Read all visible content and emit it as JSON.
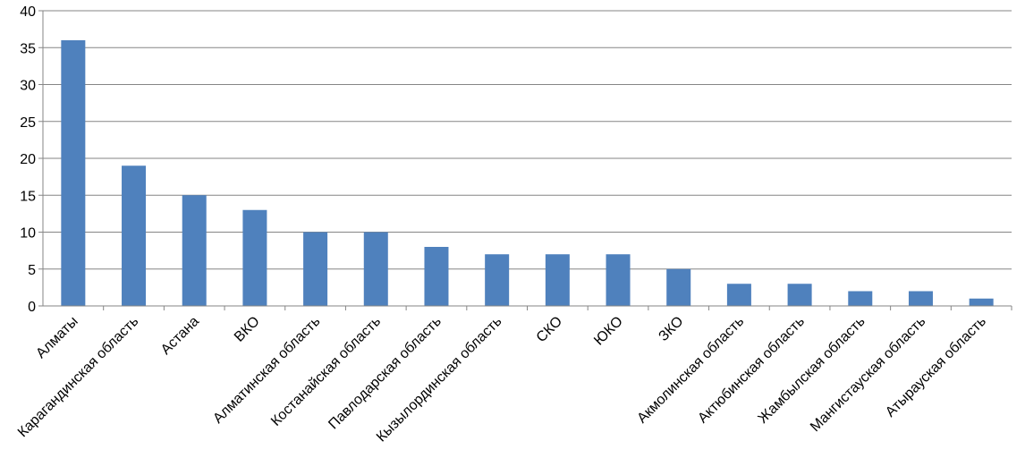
{
  "chart_data": {
    "type": "bar",
    "title": "",
    "xlabel": "",
    "ylabel": "",
    "ylim": [
      0,
      40
    ],
    "yticks": [
      0,
      5,
      10,
      15,
      20,
      25,
      30,
      35,
      40
    ],
    "grid": true,
    "legend": "none",
    "bar_color": "#4F81BD",
    "categories": [
      "Алматы",
      "Карагандинская область",
      "Астана",
      "ВКО",
      "Алматинская область",
      "Костанайская область",
      "Павлодарская область",
      "Кызылординская область",
      "СКО",
      "ЮКО",
      "ЗКО",
      "Акмолинская область",
      "Актюбинская область",
      "Жамбылская область",
      "Мангистауская область",
      "Атырауская область"
    ],
    "values": [
      36,
      19,
      15,
      13,
      10,
      10,
      8,
      7,
      7,
      7,
      5,
      3,
      3,
      2,
      2,
      1
    ]
  }
}
